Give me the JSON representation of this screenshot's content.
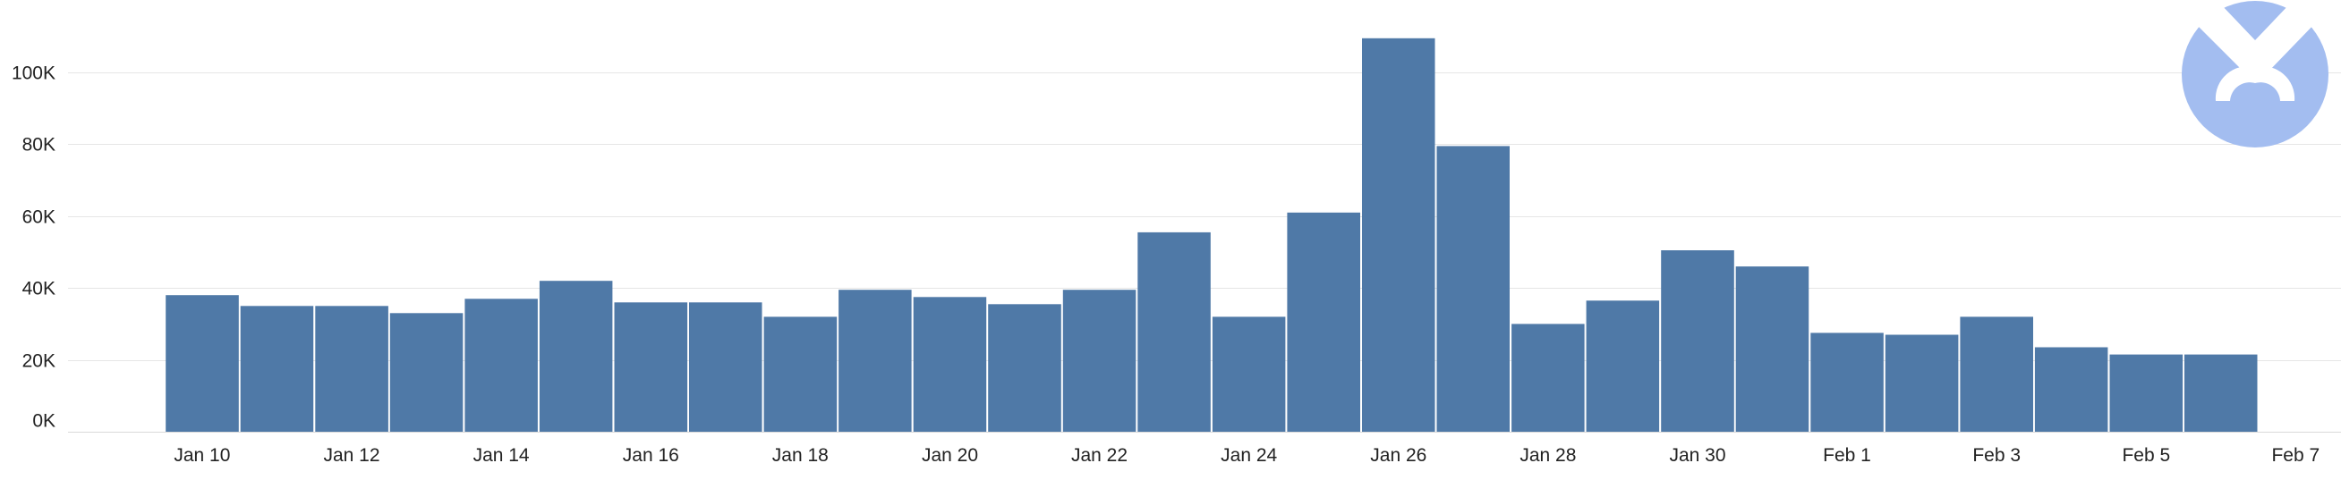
{
  "chart_data": {
    "type": "bar",
    "title": "",
    "xlabel": "",
    "ylabel": "",
    "ylim": [
      0,
      110000
    ],
    "grid": true,
    "legend": "none",
    "x_start": "2024-01-09",
    "categories": [
      "Jan 10",
      "Jan 11",
      "Jan 12",
      "Jan 13",
      "Jan 14",
      "Jan 15",
      "Jan 16",
      "Jan 17",
      "Jan 18",
      "Jan 19",
      "Jan 20",
      "Jan 21",
      "Jan 22",
      "Jan 23",
      "Jan 24",
      "Jan 25",
      "Jan 26",
      "Jan 27",
      "Jan 28",
      "Jan 29",
      "Jan 30",
      "Jan 31",
      "Feb 1",
      "Feb 2",
      "Feb 3",
      "Feb 4",
      "Feb 5",
      "Feb 6"
    ],
    "values": [
      38000,
      35000,
      35000,
      33000,
      37000,
      42000,
      36000,
      36000,
      32000,
      39500,
      37500,
      35500,
      39500,
      55500,
      32000,
      61000,
      109500,
      79500,
      30000,
      36500,
      50500,
      46000,
      27500,
      27000,
      32000,
      23500,
      21500,
      21500
    ],
    "y_ticks": [
      {
        "value": 0,
        "label": "0K"
      },
      {
        "value": 20000,
        "label": "20K"
      },
      {
        "value": 40000,
        "label": "40K"
      },
      {
        "value": 60000,
        "label": "60K"
      },
      {
        "value": 80000,
        "label": "80K"
      },
      {
        "value": 100000,
        "label": "100K"
      }
    ],
    "x_ticks": [
      {
        "day": 1,
        "label": "Jan 10"
      },
      {
        "day": 3,
        "label": "Jan 12"
      },
      {
        "day": 5,
        "label": "Jan 14"
      },
      {
        "day": 7,
        "label": "Jan 16"
      },
      {
        "day": 9,
        "label": "Jan 18"
      },
      {
        "day": 11,
        "label": "Jan 20"
      },
      {
        "day": 13,
        "label": "Jan 22"
      },
      {
        "day": 15,
        "label": "Jan 24"
      },
      {
        "day": 17,
        "label": "Jan 26"
      },
      {
        "day": 19,
        "label": "Jan 28"
      },
      {
        "day": 21,
        "label": "Jan 30"
      },
      {
        "day": 23,
        "label": "Feb 1"
      },
      {
        "day": 25,
        "label": "Feb 3"
      },
      {
        "day": 27,
        "label": "Feb 5"
      },
      {
        "day": 29,
        "label": "Feb 7"
      }
    ],
    "bar_color": "#4f79a7",
    "grid_color": "#e6e6e6",
    "logo": {
      "icon": "malwarebytes-logo-icon",
      "color": "#a3bdf0"
    }
  }
}
